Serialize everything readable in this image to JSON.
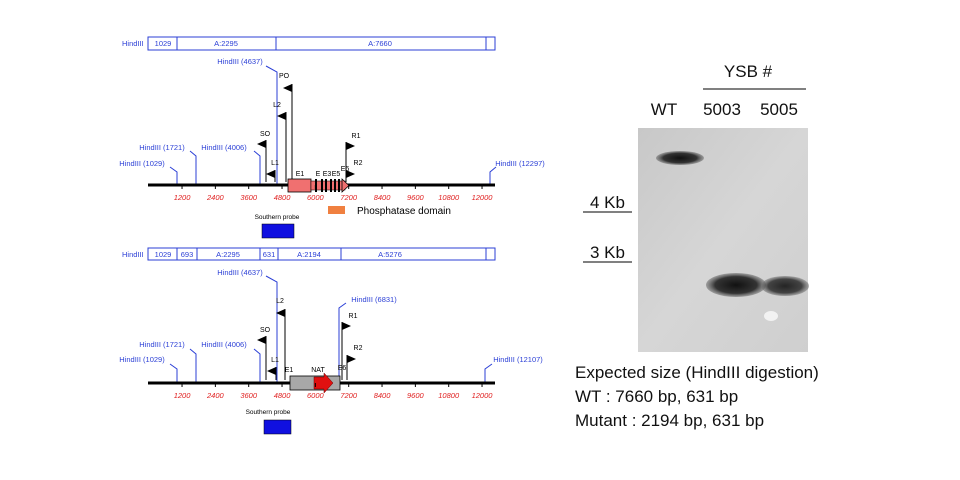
{
  "top_map": {
    "fragments": {
      "label": "HindIII",
      "cells": [
        "1029",
        "A:2295",
        "A:7660"
      ]
    },
    "sites": [
      "HindIII (4637)",
      "HindIII (1721)",
      "HindIII (4006)",
      "HindIII (1029)",
      "HindIII (12297)"
    ],
    "primers": [
      "PO",
      "L2",
      "SO",
      "L1",
      "R1",
      "R2"
    ],
    "exons": [
      "E1",
      "E",
      "E3",
      "E5",
      "E6"
    ],
    "axis_ticks": [
      1200,
      2400,
      3600,
      4800,
      6000,
      7200,
      8400,
      9600,
      10800,
      12000
    ],
    "probe": "Southern probe",
    "domain_legend": "Phosphatase domain"
  },
  "bottom_map": {
    "fragments": {
      "label": "HindIII",
      "cells": [
        "1029",
        "693",
        "A:2295",
        "631",
        "A:2194",
        "A:5276"
      ]
    },
    "sites": [
      "HindIII (4637)",
      "HindIII (6831)",
      "HindIII (1721)",
      "HindIII (4006)",
      "HindIII (1029)",
      "HindIII (12107)"
    ],
    "primers": [
      "L2",
      "SO",
      "R1",
      "L1",
      "R2"
    ],
    "exons": [
      "E1",
      "NAT",
      "E6"
    ],
    "axis_ticks": [
      1200,
      2400,
      3600,
      4800,
      6000,
      7200,
      8400,
      9600,
      10800,
      12000
    ],
    "probe": "Southern probe"
  },
  "gel": {
    "group_label": "YSB #",
    "lanes": [
      "WT",
      "5003",
      "5005"
    ],
    "markers": [
      "4 Kb",
      "3 Kb"
    ]
  },
  "caption": {
    "title": "Expected size (HindIII digestion)",
    "lines": [
      "WT : 7660 bp, 631 bp",
      "Mutant : 2194 bp, 631 bp"
    ]
  }
}
